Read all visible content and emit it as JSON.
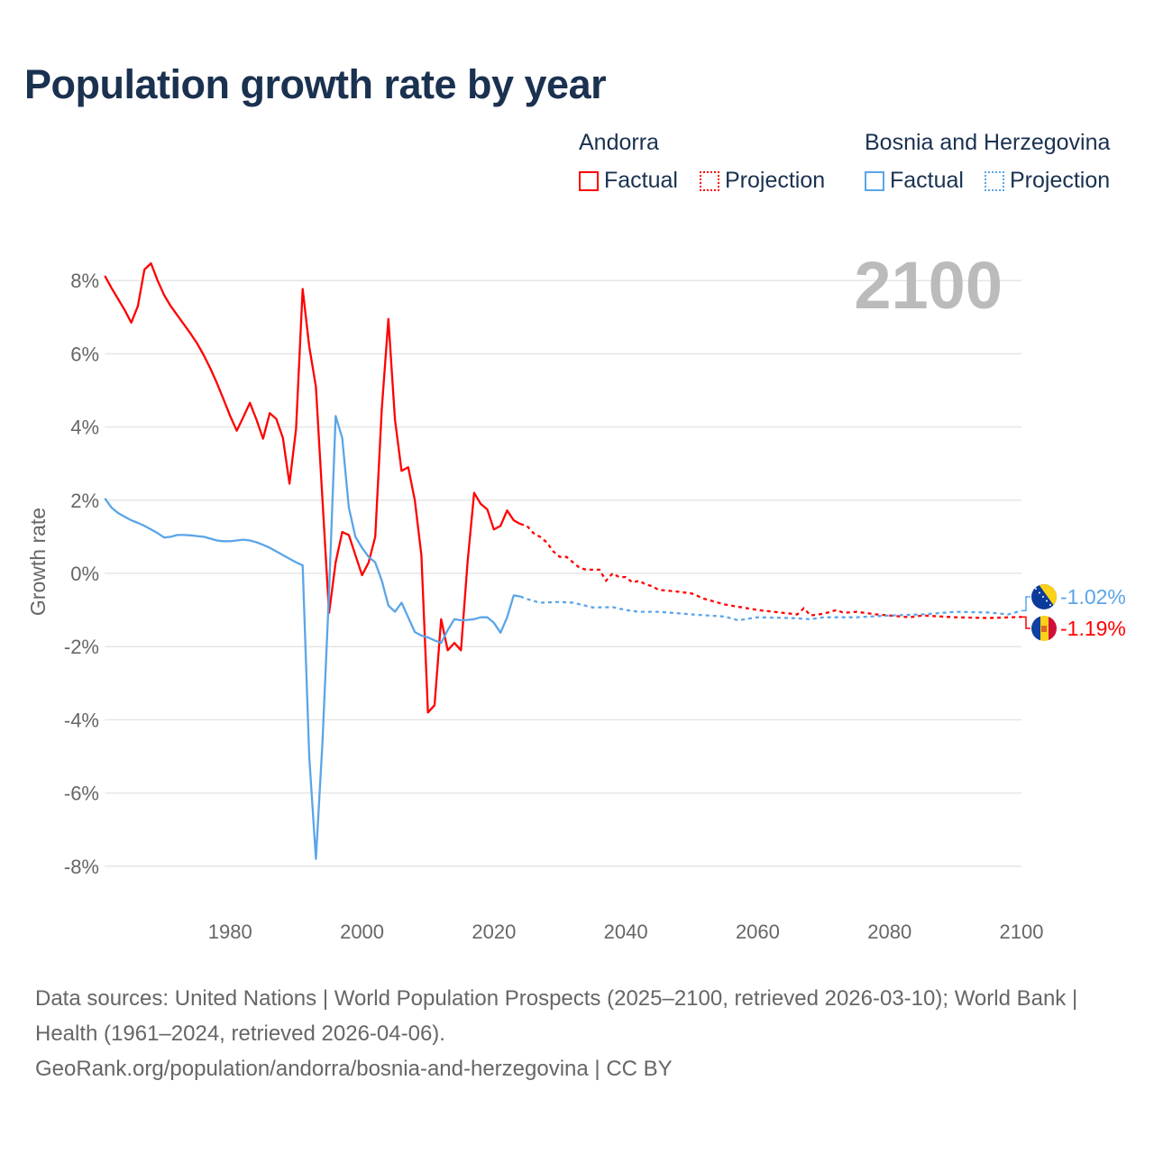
{
  "title": "Population growth rate by year",
  "legend": {
    "groups": [
      {
        "name": "Andorra",
        "color": "#ff0000",
        "factual": "Factual",
        "projection": "Projection"
      },
      {
        "name": "Bosnia and Herzegovina",
        "color": "#5aa5e8",
        "factual": "Factual",
        "projection": "Projection"
      }
    ]
  },
  "footer": {
    "sources": "Data sources: United Nations | World Population Prospects (2025–2100, retrieved 2026-03-10); World Bank | Health (1961–2024, retrieved 2026-04-06).",
    "link": "GeoRank.org/population/andorra/bosnia-and-herzegovina | CC BY"
  },
  "chart_data": {
    "type": "line",
    "title": "Population growth rate by year",
    "ylabel": "Growth rate",
    "xlabel": "",
    "xlim": [
      1961,
      2100
    ],
    "ylim": [
      -9,
      9
    ],
    "xticks": [
      1980,
      2000,
      2020,
      2040,
      2060,
      2080,
      2100
    ],
    "xtick_labels": [
      "1980",
      "2000",
      "2020",
      "2040",
      "2060",
      "2080",
      "2100"
    ],
    "yticks": [
      8,
      6,
      4,
      2,
      0,
      -2,
      -4,
      -6,
      -8
    ],
    "ytick_labels": [
      "8%",
      "6%",
      "4%",
      "2%",
      "0%",
      "-2%",
      "-4%",
      "-6%",
      "-8%"
    ],
    "grid": true,
    "year_overlay": "2100",
    "series": [
      {
        "name": "Andorra",
        "color": "#ff0000",
        "end_label": "-1.19%",
        "factual": {
          "x": [
            1961,
            1962,
            1963,
            1964,
            1965,
            1966,
            1967,
            1968,
            1969,
            1970,
            1971,
            1972,
            1973,
            1974,
            1975,
            1976,
            1977,
            1978,
            1979,
            1980,
            1981,
            1982,
            1983,
            1984,
            1985,
            1986,
            1987,
            1988,
            1989,
            1990,
            1991,
            1992,
            1993,
            1994,
            1995,
            1996,
            1997,
            1998,
            1999,
            2000,
            2001,
            2002,
            2003,
            2004,
            2005,
            2006,
            2007,
            2008,
            2009,
            2010,
            2011,
            2012,
            2013,
            2014,
            2015,
            2016,
            2017,
            2018,
            2019,
            2020,
            2021,
            2022,
            2023,
            2024
          ],
          "y": [
            8.13,
            7.8,
            7.5,
            7.2,
            6.85,
            7.3,
            8.3,
            8.47,
            8.0,
            7.6,
            7.3,
            7.05,
            6.8,
            6.55,
            6.28,
            5.96,
            5.6,
            5.2,
            4.75,
            4.3,
            3.9,
            4.27,
            4.66,
            4.2,
            3.68,
            4.38,
            4.22,
            3.7,
            2.45,
            3.95,
            7.77,
            6.2,
            5.1,
            2.0,
            -1.08,
            0.3,
            1.13,
            1.05,
            0.5,
            -0.05,
            0.3,
            1.0,
            4.5,
            6.95,
            4.2,
            2.8,
            2.9,
            2.0,
            0.5,
            -3.8,
            -3.6,
            -1.25,
            -2.1,
            -1.9,
            -2.1,
            0.3,
            2.2,
            1.9,
            1.75,
            1.2,
            1.3,
            1.72,
            1.45,
            1.35
          ]
        },
        "projection": {
          "x": [
            2024,
            2025,
            2026,
            2027,
            2028,
            2029,
            2030,
            2031,
            2032,
            2033,
            2034,
            2035,
            2036,
            2037,
            2038,
            2039,
            2040,
            2041,
            2042,
            2043,
            2044,
            2045,
            2048,
            2050,
            2052,
            2055,
            2060,
            2065,
            2066,
            2067,
            2068,
            2070,
            2072,
            2073,
            2075,
            2078,
            2080,
            2083,
            2085,
            2090,
            2095,
            2100
          ],
          "y": [
            1.35,
            1.3,
            1.1,
            1.0,
            0.85,
            0.6,
            0.45,
            0.45,
            0.3,
            0.15,
            0.1,
            0.1,
            0.1,
            -0.2,
            0.0,
            -0.1,
            -0.1,
            -0.25,
            -0.2,
            -0.3,
            -0.35,
            -0.45,
            -0.5,
            -0.55,
            -0.7,
            -0.85,
            -1.0,
            -1.1,
            -1.12,
            -0.95,
            -1.15,
            -1.1,
            -1.0,
            -1.08,
            -1.05,
            -1.12,
            -1.15,
            -1.2,
            -1.15,
            -1.2,
            -1.22,
            -1.19
          ]
        }
      },
      {
        "name": "Bosnia and Herzegovina",
        "color": "#5aa5e8",
        "end_label": "-1.02%",
        "factual": {
          "x": [
            1961,
            1962,
            1963,
            1964,
            1965,
            1966,
            1967,
            1968,
            1969,
            1970,
            1971,
            1972,
            1973,
            1974,
            1975,
            1976,
            1977,
            1978,
            1979,
            1980,
            1981,
            1982,
            1983,
            1984,
            1985,
            1986,
            1987,
            1988,
            1989,
            1990,
            1991,
            1992,
            1993,
            1994,
            1995,
            1996,
            1997,
            1998,
            1999,
            2000,
            2001,
            2002,
            2003,
            2004,
            2005,
            2006,
            2007,
            2008,
            2009,
            2010,
            2011,
            2012,
            2013,
            2014,
            2015,
            2016,
            2017,
            2018,
            2019,
            2020,
            2021,
            2022,
            2023,
            2024
          ],
          "y": [
            2.05,
            1.8,
            1.65,
            1.55,
            1.45,
            1.38,
            1.3,
            1.2,
            1.1,
            0.98,
            1.0,
            1.05,
            1.05,
            1.04,
            1.02,
            1.0,
            0.95,
            0.9,
            0.88,
            0.88,
            0.9,
            0.92,
            0.9,
            0.85,
            0.78,
            0.7,
            0.6,
            0.5,
            0.4,
            0.3,
            0.22,
            -5.0,
            -7.8,
            -4.6,
            -0.5,
            4.3,
            3.7,
            1.8,
            1.0,
            0.7,
            0.45,
            0.3,
            -0.2,
            -0.88,
            -1.05,
            -0.8,
            -1.2,
            -1.6,
            -1.7,
            -1.75,
            -1.83,
            -1.9,
            -1.55,
            -1.25,
            -1.28,
            -1.27,
            -1.25,
            -1.2,
            -1.2,
            -1.35,
            -1.62,
            -1.2,
            -0.6,
            -0.63
          ]
        },
        "projection": {
          "x": [
            2024,
            2025,
            2027,
            2030,
            2032,
            2035,
            2038,
            2040,
            2042,
            2045,
            2050,
            2055,
            2057,
            2060,
            2065,
            2068,
            2070,
            2075,
            2080,
            2085,
            2090,
            2095,
            2098,
            2100
          ],
          "y": [
            -0.63,
            -0.7,
            -0.8,
            -0.78,
            -0.8,
            -0.93,
            -0.92,
            -1.0,
            -1.05,
            -1.05,
            -1.12,
            -1.18,
            -1.28,
            -1.2,
            -1.22,
            -1.25,
            -1.2,
            -1.2,
            -1.15,
            -1.12,
            -1.05,
            -1.07,
            -1.12,
            -1.02
          ]
        }
      }
    ]
  }
}
